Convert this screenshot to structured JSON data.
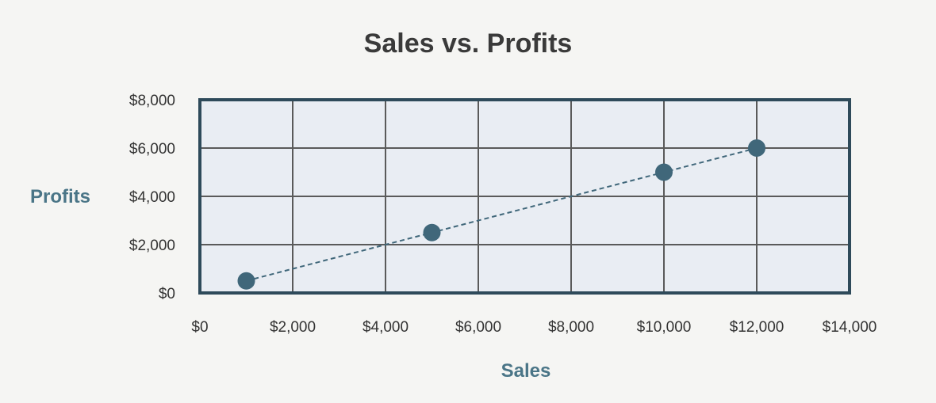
{
  "chart_data": {
    "type": "scatter",
    "title": "Sales vs. Profits",
    "xlabel": "Sales",
    "ylabel": "Profits",
    "xlim": [
      0,
      14000
    ],
    "ylim": [
      0,
      8000
    ],
    "x_ticks": [
      0,
      2000,
      4000,
      6000,
      8000,
      10000,
      12000,
      14000
    ],
    "y_ticks": [
      0,
      2000,
      4000,
      6000,
      8000
    ],
    "x_tick_labels": [
      "$0",
      "$2,000",
      "$4,000",
      "$6,000",
      "$8,000",
      "$10,000",
      "$12,000",
      "$14,000"
    ],
    "y_tick_labels": [
      "$0",
      "$2,000",
      "$4,000",
      "$6,000",
      "$8,000"
    ],
    "grid": true,
    "connect_points": "dashed",
    "series": [
      {
        "x": [
          1000,
          5000,
          10000,
          12000
        ],
        "y": [
          500,
          2500,
          5000,
          6000
        ]
      }
    ],
    "colors": {
      "point": "#40677a",
      "line": "#40677a",
      "frame": "#2e4a5a",
      "grid": "#5a5a5a",
      "plot_bg": "#e9edf3"
    }
  }
}
